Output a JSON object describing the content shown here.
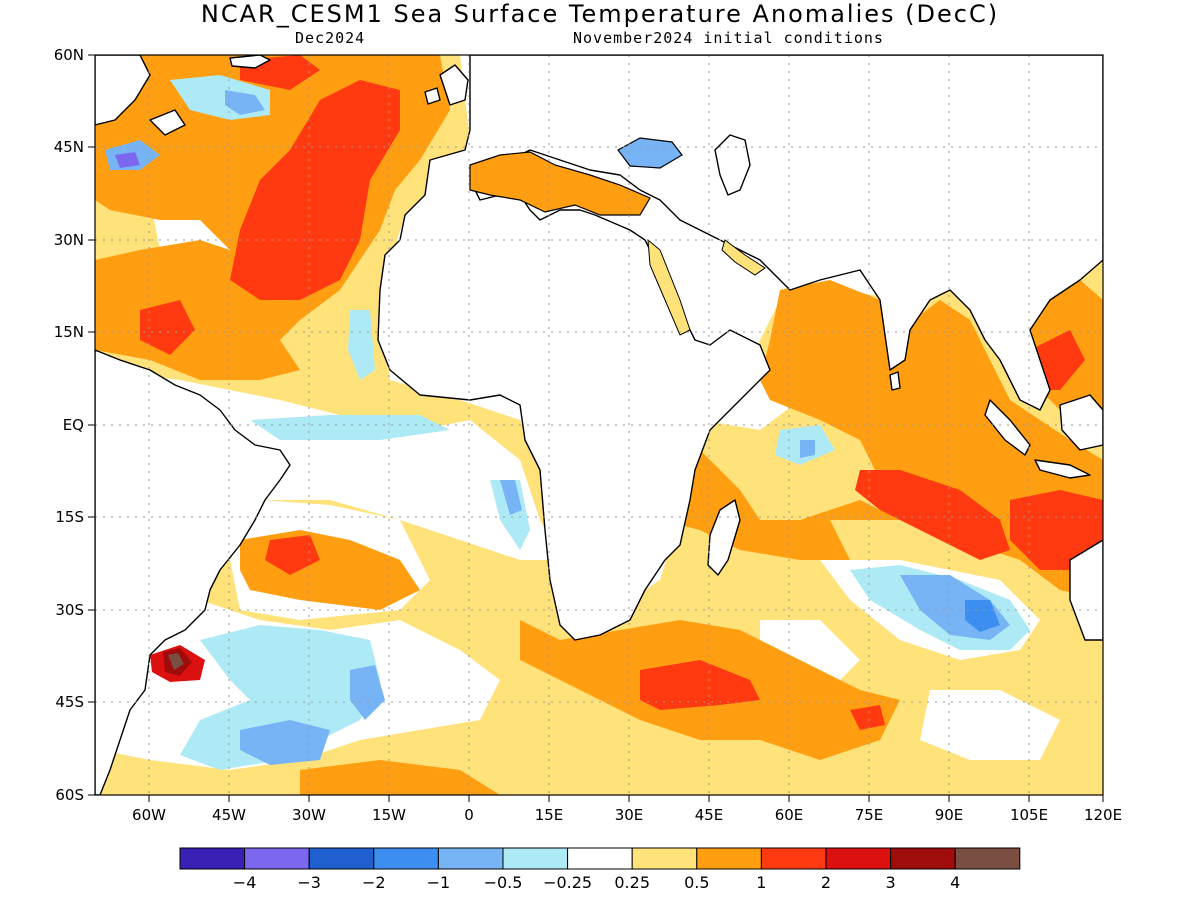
{
  "title": "NCAR_CESM1 Sea Surface Temperature Anomalies (DecC)",
  "subtitle_left": "Dec2024",
  "subtitle_right": "November2024 initial conditions",
  "map": {
    "lat_labels": [
      "60N",
      "45N",
      "30N",
      "15N",
      "EQ",
      "15S",
      "30S",
      "45S",
      "60S"
    ],
    "lon_labels": [
      "60W",
      "45W",
      "30W",
      "15W",
      "0",
      "15E",
      "30E",
      "45E",
      "60E",
      "75E",
      "90E",
      "105E",
      "120E"
    ],
    "gridlines": "dotted"
  },
  "colorbar": {
    "colors": [
      "#3a1fb5",
      "#7b68ee",
      "#1f5fcf",
      "#3c8ff0",
      "#77b4f5",
      "#aeeaf5",
      "#ffffff",
      "#ffe27a",
      "#ff9e10",
      "#ff3a10",
      "#dd1010",
      "#a00b0b",
      "#7a4e40"
    ],
    "labels": [
      "−4",
      "−3",
      "−2",
      "−1",
      "−0.5",
      "−0.25",
      "0.25",
      "0.5",
      "1",
      "2",
      "3",
      "4"
    ]
  },
  "colors": {
    "yellow": "#ffe27a",
    "orange": "#ff9e10",
    "red": "#ff3a10",
    "darkred": "#dd1010",
    "maroon": "#a00b0b",
    "brown": "#7a4e40",
    "cyan": "#aeeaf5",
    "lightblue": "#77b4f5",
    "blue": "#3c8ff0",
    "purple": "#7b68ee"
  }
}
